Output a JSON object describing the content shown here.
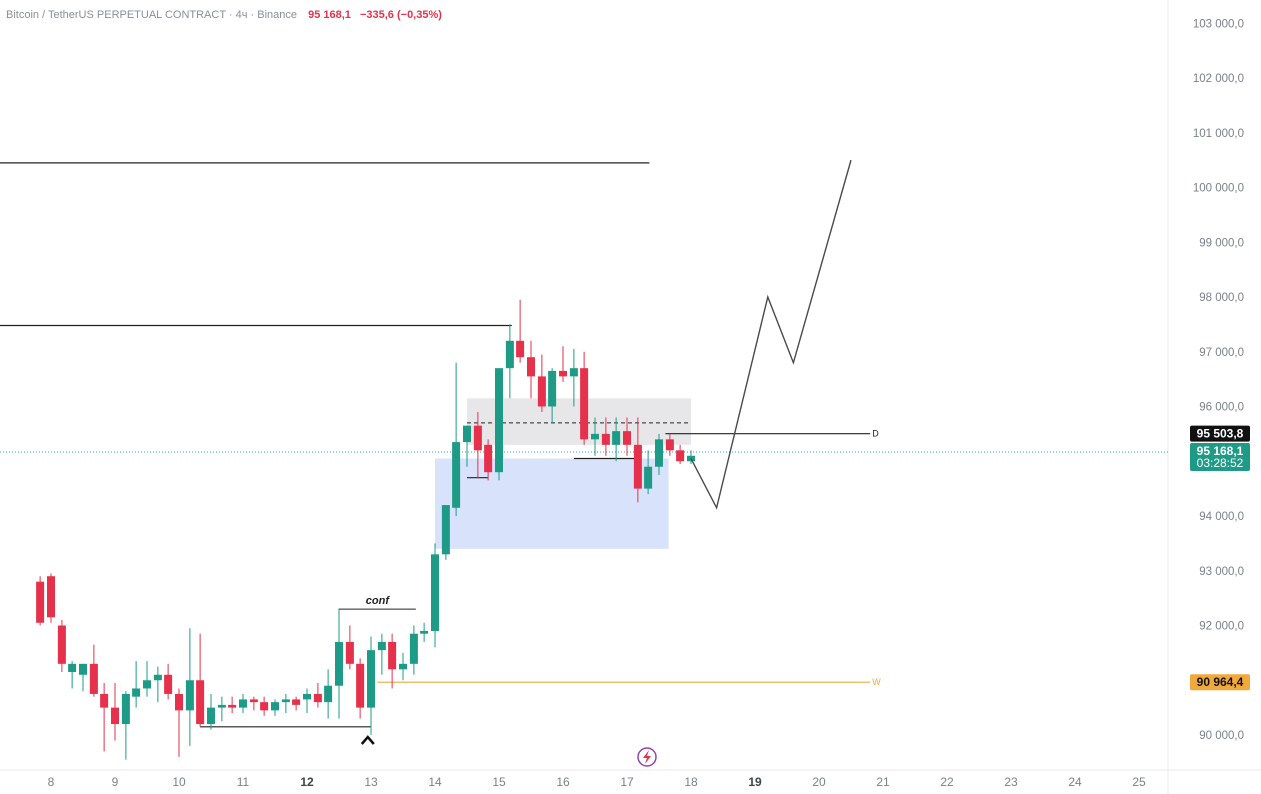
{
  "header": {
    "title": "Bitcoin / TetherUS PERPETUAL CONTRACT · 4ч · Binance",
    "price": "95 168,1",
    "change": "−335,6 (−0,35%)"
  },
  "colors": {
    "up": "#1e9b86",
    "down": "#e5314b",
    "orange_level": "#f2a93b",
    "demand_zone": "#d4dffb",
    "supply_zone": "#e3e3e6",
    "projection": "#4a4a4a",
    "current_price_line": "#26a69a"
  },
  "chart_data": {
    "type": "candlestick",
    "symbol": "BTCUSDT.P",
    "timeframe": "4ч",
    "y_ticks": [
      {
        "v": 103000,
        "label": "103 000,0"
      },
      {
        "v": 102000,
        "label": "102 000,0"
      },
      {
        "v": 101000,
        "label": "101 000,0"
      },
      {
        "v": 100000,
        "label": "100 000,0"
      },
      {
        "v": 99000,
        "label": "99 000,0"
      },
      {
        "v": 98000,
        "label": "98 000,0"
      },
      {
        "v": 97000,
        "label": "97 000,0"
      },
      {
        "v": 96000,
        "label": "96 000,0"
      },
      {
        "v": 95000,
        "label": "95 000,0"
      },
      {
        "v": 94000,
        "label": "94 000,0"
      },
      {
        "v": 93000,
        "label": "93 000,0"
      },
      {
        "v": 92000,
        "label": "92 000,0"
      },
      {
        "v": 91000,
        "label": "91 000,0"
      },
      {
        "v": 90000,
        "label": "90 000,0"
      }
    ],
    "x_ticks": [
      {
        "day": 8,
        "label": "8",
        "bold": false
      },
      {
        "day": 9,
        "label": "9",
        "bold": false
      },
      {
        "day": 10,
        "label": "10",
        "bold": false
      },
      {
        "day": 11,
        "label": "11",
        "bold": false
      },
      {
        "day": 12,
        "label": "12",
        "bold": true
      },
      {
        "day": 13,
        "label": "13",
        "bold": false
      },
      {
        "day": 14,
        "label": "14",
        "bold": false
      },
      {
        "day": 15,
        "label": "15",
        "bold": false
      },
      {
        "day": 16,
        "label": "16",
        "bold": false
      },
      {
        "day": 17,
        "label": "17",
        "bold": false
      },
      {
        "day": 18,
        "label": "18",
        "bold": false
      },
      {
        "day": 19,
        "label": "19",
        "bold": true
      },
      {
        "day": 20,
        "label": "20",
        "bold": false
      },
      {
        "day": 21,
        "label": "21",
        "bold": false
      },
      {
        "day": 22,
        "label": "22",
        "bold": false
      },
      {
        "day": 23,
        "label": "23",
        "bold": false
      },
      {
        "day": 24,
        "label": "24",
        "bold": false
      },
      {
        "day": 25,
        "label": "25",
        "bold": false
      }
    ],
    "candles": [
      {
        "t": 7.83,
        "o": 92800,
        "h": 92900,
        "l": 92000,
        "c": 92050
      },
      {
        "t": 8.0,
        "o": 92900,
        "h": 92950,
        "l": 92050,
        "c": 92150
      },
      {
        "t": 8.17,
        "o": 92000,
        "h": 92100,
        "l": 91150,
        "c": 91300
      },
      {
        "t": 8.33,
        "o": 91150,
        "h": 91350,
        "l": 90850,
        "c": 91300
      },
      {
        "t": 8.5,
        "o": 91100,
        "h": 91300,
        "l": 90800,
        "c": 91300
      },
      {
        "t": 8.67,
        "o": 91300,
        "h": 91650,
        "l": 90700,
        "c": 90750
      },
      {
        "t": 8.83,
        "o": 90750,
        "h": 90950,
        "l": 89700,
        "c": 90500
      },
      {
        "t": 9.0,
        "o": 90500,
        "h": 90950,
        "l": 89900,
        "c": 90200
      },
      {
        "t": 9.17,
        "o": 90200,
        "h": 90800,
        "l": 89550,
        "c": 90750
      },
      {
        "t": 9.33,
        "o": 90700,
        "h": 91350,
        "l": 90500,
        "c": 90850
      },
      {
        "t": 9.5,
        "o": 90850,
        "h": 91350,
        "l": 90700,
        "c": 91000
      },
      {
        "t": 9.67,
        "o": 91000,
        "h": 91250,
        "l": 90600,
        "c": 91100
      },
      {
        "t": 9.83,
        "o": 91100,
        "h": 91300,
        "l": 90650,
        "c": 90750
      },
      {
        "t": 10.0,
        "o": 90750,
        "h": 90850,
        "l": 89600,
        "c": 90450
      },
      {
        "t": 10.17,
        "o": 90450,
        "h": 91950,
        "l": 89800,
        "c": 91000
      },
      {
        "t": 10.33,
        "o": 91000,
        "h": 91850,
        "l": 90150,
        "c": 90200
      },
      {
        "t": 10.5,
        "o": 90200,
        "h": 90750,
        "l": 90100,
        "c": 90500
      },
      {
        "t": 10.67,
        "o": 90500,
        "h": 90700,
        "l": 90250,
        "c": 90550
      },
      {
        "t": 10.83,
        "o": 90550,
        "h": 90700,
        "l": 90400,
        "c": 90500
      },
      {
        "t": 11.0,
        "o": 90500,
        "h": 90750,
        "l": 90400,
        "c": 90650
      },
      {
        "t": 11.17,
        "o": 90650,
        "h": 90700,
        "l": 90450,
        "c": 90600
      },
      {
        "t": 11.33,
        "o": 90600,
        "h": 90700,
        "l": 90350,
        "c": 90450
      },
      {
        "t": 11.5,
        "o": 90450,
        "h": 90650,
        "l": 90350,
        "c": 90600
      },
      {
        "t": 11.67,
        "o": 90600,
        "h": 90750,
        "l": 90400,
        "c": 90650
      },
      {
        "t": 11.83,
        "o": 90650,
        "h": 90700,
        "l": 90450,
        "c": 90550
      },
      {
        "t": 12.0,
        "o": 90650,
        "h": 90850,
        "l": 90400,
        "c": 90750
      },
      {
        "t": 12.17,
        "o": 90750,
        "h": 90950,
        "l": 90500,
        "c": 90600
      },
      {
        "t": 12.33,
        "o": 90600,
        "h": 91200,
        "l": 90300,
        "c": 90900
      },
      {
        "t": 12.5,
        "o": 90900,
        "h": 92300,
        "l": 90300,
        "c": 91700
      },
      {
        "t": 12.67,
        "o": 91700,
        "h": 92000,
        "l": 91200,
        "c": 91300
      },
      {
        "t": 12.83,
        "o": 91300,
        "h": 91400,
        "l": 90300,
        "c": 90500
      },
      {
        "t": 13.0,
        "o": 90500,
        "h": 91800,
        "l": 90000,
        "c": 91550
      },
      {
        "t": 13.17,
        "o": 91550,
        "h": 91850,
        "l": 91100,
        "c": 91700
      },
      {
        "t": 13.33,
        "o": 91700,
        "h": 91850,
        "l": 90850,
        "c": 91200
      },
      {
        "t": 13.5,
        "o": 91200,
        "h": 91500,
        "l": 91000,
        "c": 91300
      },
      {
        "t": 13.67,
        "o": 91300,
        "h": 92000,
        "l": 91100,
        "c": 91850
      },
      {
        "t": 13.83,
        "o": 91850,
        "h": 92050,
        "l": 91700,
        "c": 91900
      },
      {
        "t": 14.0,
        "o": 91900,
        "h": 93500,
        "l": 91600,
        "c": 93300
      },
      {
        "t": 14.17,
        "o": 93300,
        "h": 94200,
        "l": 93200,
        "c": 94200
      },
      {
        "t": 14.33,
        "o": 94150,
        "h": 96800,
        "l": 94000,
        "c": 95350
      },
      {
        "t": 14.5,
        "o": 95350,
        "h": 95650,
        "l": 94900,
        "c": 95650
      },
      {
        "t": 14.67,
        "o": 95650,
        "h": 95900,
        "l": 94700,
        "c": 95200
      },
      {
        "t": 14.83,
        "o": 95300,
        "h": 95400,
        "l": 94650,
        "c": 94800
      },
      {
        "t": 15.0,
        "o": 94800,
        "h": 96700,
        "l": 94650,
        "c": 96700
      },
      {
        "t": 15.17,
        "o": 96700,
        "h": 97500,
        "l": 96150,
        "c": 97200
      },
      {
        "t": 15.33,
        "o": 97200,
        "h": 97950,
        "l": 96800,
        "c": 96900
      },
      {
        "t": 15.5,
        "o": 96900,
        "h": 97200,
        "l": 96150,
        "c": 96550
      },
      {
        "t": 15.67,
        "o": 96550,
        "h": 96950,
        "l": 95900,
        "c": 96000
      },
      {
        "t": 15.83,
        "o": 96000,
        "h": 96700,
        "l": 95700,
        "c": 96650
      },
      {
        "t": 16.0,
        "o": 96650,
        "h": 97100,
        "l": 96450,
        "c": 96550
      },
      {
        "t": 16.17,
        "o": 96550,
        "h": 97050,
        "l": 96000,
        "c": 96700
      },
      {
        "t": 16.33,
        "o": 96700,
        "h": 97000,
        "l": 95300,
        "c": 95400
      },
      {
        "t": 16.5,
        "o": 95400,
        "h": 95800,
        "l": 95100,
        "c": 95500
      },
      {
        "t": 16.67,
        "o": 95500,
        "h": 95800,
        "l": 95100,
        "c": 95300
      },
      {
        "t": 16.83,
        "o": 95300,
        "h": 95800,
        "l": 95000,
        "c": 95550
      },
      {
        "t": 17.0,
        "o": 95550,
        "h": 95800,
        "l": 95100,
        "c": 95300
      },
      {
        "t": 17.17,
        "o": 95300,
        "h": 95800,
        "l": 94250,
        "c": 94500
      },
      {
        "t": 17.33,
        "o": 94500,
        "h": 95200,
        "l": 94400,
        "c": 94900
      },
      {
        "t": 17.5,
        "o": 94900,
        "h": 95500,
        "l": 94750,
        "c": 95400
      },
      {
        "t": 17.67,
        "o": 95400,
        "h": 95500,
        "l": 95100,
        "c": 95200
      },
      {
        "t": 17.83,
        "o": 95200,
        "h": 95300,
        "l": 94950,
        "c": 95000
      },
      {
        "t": 18.0,
        "o": 95000,
        "h": 95200,
        "l": 94950,
        "c": 95100
      }
    ],
    "horizontal_levels": [
      {
        "v": 100450,
        "from": 7.2,
        "to": 17.35,
        "color": "#222222",
        "label": ""
      },
      {
        "v": 97480,
        "from": 7.2,
        "to": 15.2,
        "color": "#222222",
        "label": ""
      },
      {
        "v": 95503.8,
        "from": 17.6,
        "to": 20.8,
        "color": "#222222",
        "label": "D"
      },
      {
        "v": 90964.4,
        "from": 13.1,
        "to": 20.8,
        "color": "#f2a93b",
        "label": "W"
      }
    ],
    "zones": [
      {
        "from": 14.0,
        "to": 17.65,
        "top": 95050,
        "bottom": 93400,
        "kind": "demand"
      },
      {
        "from": 14.5,
        "to": 18.0,
        "top": 96150,
        "bottom": 95300,
        "kind": "supply"
      }
    ],
    "dashed_level": {
      "v": 95700,
      "from": 14.5,
      "to": 18.0
    },
    "liquidity_lows": [
      {
        "v": 90150,
        "from": 10.33,
        "to": 13.0
      },
      {
        "v": 94700,
        "from": 14.5,
        "to": 14.83
      },
      {
        "v": 95050,
        "from": 16.17,
        "to": 17.17
      }
    ],
    "conf_marker": {
      "label": "conf",
      "top": 92300,
      "from": 12.5,
      "to": 13.7
    },
    "projection_path": [
      {
        "t": 18.0,
        "v": 95050
      },
      {
        "t": 18.4,
        "v": 94150
      },
      {
        "t": 19.2,
        "v": 98000
      },
      {
        "t": 19.6,
        "v": 96800
      },
      {
        "t": 20.5,
        "v": 100500
      }
    ],
    "price_tags": [
      {
        "label": "95 503,8",
        "sub": "",
        "v": 95503.8,
        "bg": "#111111",
        "fg": "#ffffff"
      },
      {
        "label": "95 168,1",
        "sub": "03:28:52",
        "v": 95168.1,
        "bg": "#1e9b86",
        "fg": "#ffffff"
      },
      {
        "label": "90 964,4",
        "sub": "",
        "v": 90964.4,
        "bg": "#f2a93b",
        "fg": "#111111"
      }
    ],
    "current_price": 95168.1
  }
}
